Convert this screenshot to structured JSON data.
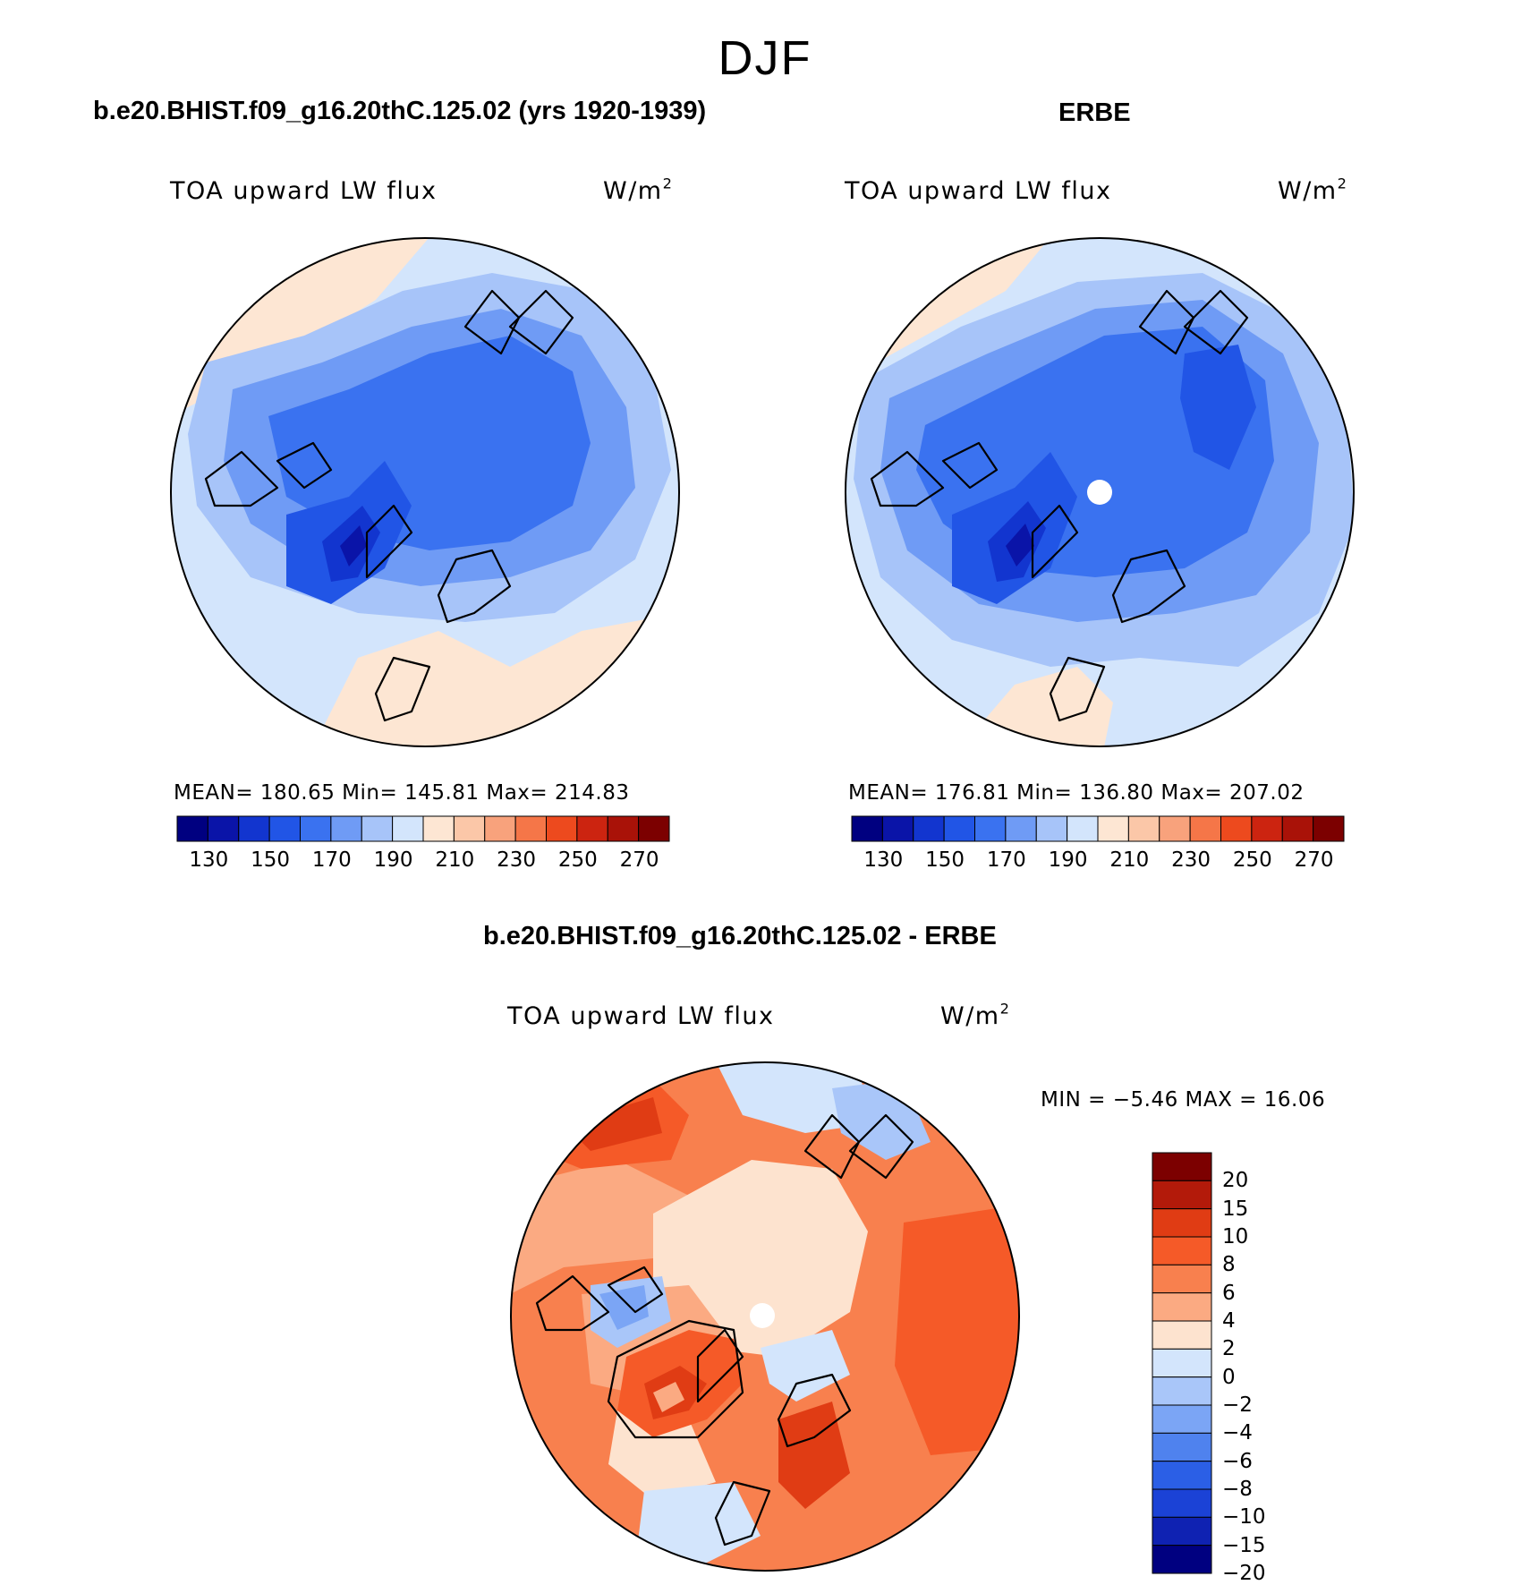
{
  "figure": {
    "season": "DJF",
    "variable": "TOA upward LW flux",
    "units": "W/m",
    "units_exp": "2"
  },
  "panels": {
    "model": {
      "title": "b.e20.BHIST.f09_g16.20thC.125.02 (yrs 1920-1939)",
      "stats": "MEAN= 180.65   Min= 145.81   Max= 214.83"
    },
    "obs": {
      "title": "ERBE",
      "stats": "MEAN= 176.81   Min= 136.80   Max= 207.02"
    },
    "diff": {
      "title": "b.e20.BHIST.f09_g16.20thC.125.02 - ERBE",
      "stats": "MIN =   −5.46 MAX =   16.06"
    }
  },
  "colorbars": {
    "abs": {
      "ticks": [
        "130",
        "150",
        "170",
        "190",
        "210",
        "230",
        "250",
        "270"
      ],
      "colors": [
        "#000080",
        "#0a14a8",
        "#1235cf",
        "#2155e6",
        "#3a72f0",
        "#6f9bf5",
        "#a7c4f9",
        "#d3e5fc",
        "#fde6d3",
        "#fbc7a8",
        "#f8a27c",
        "#f57648",
        "#ed4a1e",
        "#cc2410",
        "#a91208",
        "#7c0000"
      ]
    },
    "diff": {
      "ticks": [
        "20",
        "15",
        "10",
        "8",
        "6",
        "4",
        "2",
        "0",
        "−2",
        "−4",
        "−6",
        "−8",
        "−10",
        "−15",
        "−20"
      ],
      "colors": [
        "#7c0000",
        "#b31a0a",
        "#e03c14",
        "#f55a28",
        "#f8804e",
        "#fbaa82",
        "#fde3cf",
        "#d3e5fc",
        "#a9c6f9",
        "#7ba5f5",
        "#4f82ee",
        "#2b5fe6",
        "#1b42d6",
        "#0f22b2",
        "#000080"
      ]
    }
  }
}
